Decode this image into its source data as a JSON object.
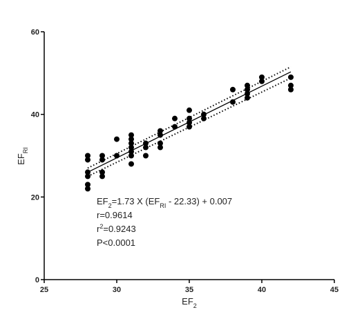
{
  "chart_data": {
    "type": "scatter",
    "x_label": [
      {
        "text": "EF"
      },
      {
        "text": "2",
        "shift": "sub"
      }
    ],
    "y_label": [
      {
        "text": "EF"
      },
      {
        "text": "RI",
        "shift": "sub"
      }
    ],
    "x": [
      28,
      28,
      28,
      28,
      28,
      28,
      29,
      29,
      29,
      29,
      30,
      30,
      31,
      31,
      31,
      31,
      31,
      31,
      31,
      32,
      32,
      32,
      33,
      33,
      33,
      33,
      34,
      34,
      35,
      35,
      35,
      35,
      36,
      36,
      38,
      38,
      39,
      39,
      39,
      39,
      40,
      40,
      42,
      42,
      42
    ],
    "values": [
      30,
      29,
      26,
      25,
      23,
      22,
      30,
      29,
      26,
      25,
      34,
      30,
      35,
      34,
      33,
      32,
      31,
      30,
      28,
      33,
      32,
      30,
      36,
      35,
      33,
      32,
      39,
      37,
      41,
      39,
      38,
      37,
      40,
      39,
      46,
      43,
      47,
      46,
      45,
      44,
      49,
      48,
      49,
      47,
      46
    ],
    "color": "#000000",
    "fit_line": {
      "x": [
        28,
        42
      ],
      "y": [
        26,
        50.3
      ]
    },
    "confidence_upper": {
      "x": [
        28,
        42
      ],
      "y": [
        27,
        51.5
      ]
    },
    "confidence_lower": {
      "x": [
        28,
        42
      ],
      "y": [
        25,
        48.8
      ]
    },
    "annotations": [
      [
        {
          "text": "EF"
        },
        {
          "text": "2",
          "shift": "sub"
        },
        {
          "text": "=1.73 X (EF"
        },
        {
          "text": "RI",
          "shift": "sub"
        },
        {
          "text": " - 22.33) + 0.007"
        }
      ],
      [
        {
          "text": "r=0.9614"
        }
      ],
      [
        {
          "text": "r"
        },
        {
          "text": "2",
          "shift": "super"
        },
        {
          "text": "=0.9243"
        }
      ],
      [
        {
          "text": "P<0.0001"
        }
      ]
    ],
    "xlim": [
      25,
      45
    ],
    "xticks": [
      25,
      30,
      35,
      40,
      45
    ],
    "ylim": [
      0,
      60
    ],
    "yticks": [
      0,
      20,
      40,
      60
    ]
  }
}
